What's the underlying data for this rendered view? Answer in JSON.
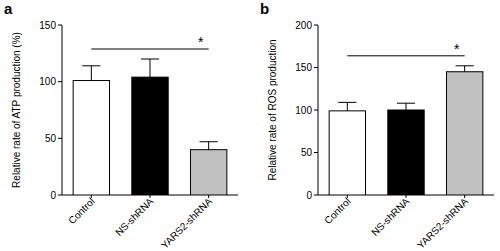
{
  "chart_data": [
    {
      "type": "bar",
      "title": "a",
      "y_label": "Relative rate of ATP production (%)",
      "categories": [
        "Control",
        "NS-shRNA",
        "YARS2-shRNA"
      ],
      "values": [
        101,
        104,
        40
      ],
      "errors": [
        13,
        16,
        7
      ],
      "colors": [
        "#ffffff",
        "#000000",
        "#c0c0c0"
      ],
      "ylim": [
        0,
        150
      ],
      "yticks": [
        0,
        50,
        100,
        150
      ],
      "annotations": [
        {
          "text": "*",
          "between": [
            0,
            2
          ]
        }
      ]
    },
    {
      "type": "bar",
      "title": "b",
      "y_label": "Relative rate of ROS production",
      "categories": [
        "Control",
        "NS-shRNA",
        "YARS2-shRNA"
      ],
      "values": [
        99,
        100,
        145
      ],
      "errors": [
        10,
        8,
        7
      ],
      "colors": [
        "#ffffff",
        "#000000",
        "#c0c0c0"
      ],
      "ylim": [
        0,
        200
      ],
      "yticks": [
        0,
        50,
        100,
        150,
        200
      ],
      "annotations": [
        {
          "text": "*",
          "between": [
            0,
            2
          ]
        }
      ]
    }
  ]
}
